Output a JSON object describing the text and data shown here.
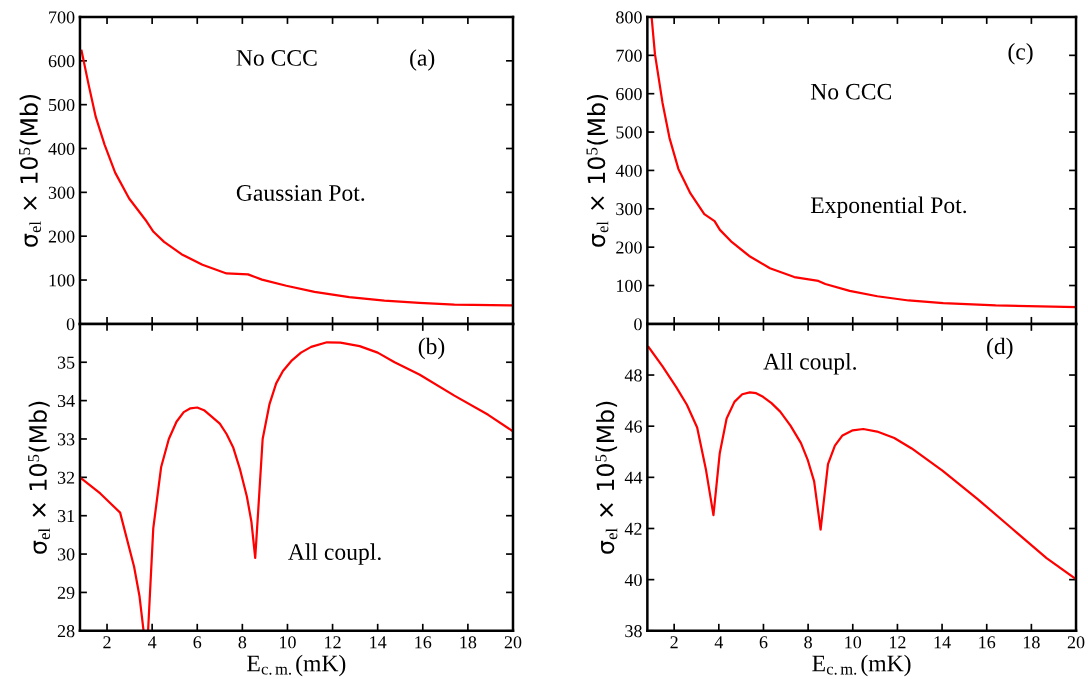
{
  "chart_data": [
    {
      "type": "line",
      "ylabel": "σ$_{el}$ × 10$^{5}$(Mb)",
      "annotations": [
        "No CCC",
        "(a)",
        "Gaussian Pot."
      ],
      "xlim": [
        0.8,
        20
      ],
      "xticks": [
        2,
        4,
        6,
        8,
        10,
        12,
        14,
        16,
        18,
        20
      ],
      "ylim": [
        0,
        700
      ],
      "yticks": [
        0,
        100,
        200,
        300,
        400,
        500,
        600,
        700
      ],
      "tick_labels": "y",
      "grid": false,
      "series": [
        {
          "color": "#ff0000",
          "x": [
            0.87,
            1.19,
            1.5,
            1.89,
            2.36,
            2.98,
            3.75,
            4.06,
            4.53,
            5.3,
            6.23,
            7.3,
            8.25,
            8.87,
            9.95,
            11.2,
            12.74,
            14.3,
            15.85,
            17.4,
            20
          ],
          "values": [
            623,
            544,
            472,
            409,
            345,
            286,
            234,
            210,
            187,
            159,
            135,
            115,
            113,
            101,
            87,
            73,
            61,
            53,
            48,
            44,
            42
          ]
        }
      ]
    },
    {
      "type": "line",
      "xlabel": "E$_{c.m.}$(mK)",
      "ylabel": "σ$_{el}$ × 10$^{5}$(Mb)",
      "annotations": [
        "(b)",
        "All coupl."
      ],
      "xlim": [
        0.8,
        20
      ],
      "xticks": [
        2,
        4,
        6,
        8,
        10,
        12,
        14,
        16,
        18,
        20
      ],
      "ylim": [
        28,
        36
      ],
      "yticks": [
        28,
        29,
        30,
        31,
        32,
        33,
        34,
        35
      ],
      "grid": false,
      "series": [
        {
          "color": "#ff0000",
          "x": [
            0.8,
            1.7,
            2.58,
            3.2,
            3.44,
            3.62,
            3.72,
            3.82,
            4.05,
            4.4,
            4.74,
            5.08,
            5.4,
            5.7,
            6.0,
            6.3,
            6.6,
            7.0,
            7.3,
            7.6,
            7.9,
            8.2,
            8.4,
            8.57,
            8.7,
            8.9,
            9.2,
            9.5,
            9.8,
            10.2,
            10.6,
            11.05,
            11.75,
            12.35,
            13.2,
            14.0,
            14.75,
            15.85,
            17.4,
            18.9,
            20
          ],
          "values": [
            32.0,
            31.58,
            31.08,
            29.67,
            28.9,
            28.0,
            null,
            28.0,
            30.67,
            32.27,
            33.0,
            33.45,
            33.7,
            33.8,
            33.82,
            33.75,
            33.6,
            33.4,
            33.13,
            32.77,
            32.2,
            31.5,
            30.85,
            29.9,
            31.1,
            33.0,
            33.9,
            34.45,
            34.77,
            35.05,
            35.25,
            35.4,
            35.52,
            35.51,
            35.42,
            35.25,
            35.0,
            34.68,
            34.13,
            33.63,
            33.2
          ]
        }
      ]
    },
    {
      "type": "line",
      "ylabel": "σ$_{el}$ × 10$^{5}$(Mb)",
      "annotations": [
        "(c)",
        "No CCC",
        "Exponential Pot."
      ],
      "xlim": [
        0.8,
        20
      ],
      "xticks": [
        2,
        4,
        6,
        8,
        10,
        12,
        14,
        16,
        18,
        20
      ],
      "ylim": [
        0,
        800
      ],
      "yticks": [
        0,
        100,
        200,
        300,
        400,
        500,
        600,
        700,
        800
      ],
      "tick_labels": "y",
      "grid": false,
      "series": [
        {
          "color": "#ff0000",
          "x": [
            0.99,
            1.14,
            1.48,
            1.79,
            2.19,
            2.73,
            3.35,
            3.81,
            4.05,
            4.59,
            5.36,
            6.29,
            7.38,
            8.46,
            8.77,
            9.86,
            11.1,
            12.5,
            14.05,
            16.4,
            20
          ],
          "values": [
            800,
            703,
            576,
            485,
            404,
            340,
            286,
            268,
            245,
            213,
            177,
            145,
            122,
            112,
            104,
            86,
            72,
            61,
            54,
            48,
            44
          ]
        }
      ]
    },
    {
      "type": "line",
      "xlabel": "E$_{c.m.}$(mK)",
      "ylabel": "σ$_{el}$ × 10$^{5}$(Mb)",
      "annotations": [
        "All coupl.",
        "(d)"
      ],
      "xlim": [
        0.8,
        20
      ],
      "xticks": [
        2,
        4,
        6,
        8,
        10,
        12,
        14,
        16,
        18,
        20
      ],
      "ylim": [
        38,
        50
      ],
      "yticks": [
        38,
        40,
        42,
        44,
        46,
        48
      ],
      "grid": false,
      "series": [
        {
          "color": "#ff0000",
          "x": [
            0.86,
            1.48,
            2.1,
            2.57,
            3.03,
            3.42,
            3.76,
            4.04,
            4.35,
            4.7,
            5.05,
            5.39,
            5.67,
            5.98,
            6.36,
            6.75,
            7.21,
            7.68,
            7.99,
            8.27,
            8.56,
            8.89,
            9.2,
            9.54,
            10.0,
            10.47,
            11.09,
            11.86,
            12.64,
            14.03,
            15.58,
            17.13,
            18.68,
            20
          ],
          "values": [
            49.09,
            48.34,
            47.52,
            46.84,
            45.95,
            44.32,
            42.52,
            44.93,
            46.3,
            46.95,
            47.25,
            47.32,
            47.29,
            47.15,
            46.9,
            46.57,
            46.02,
            45.34,
            44.66,
            43.84,
            41.96,
            44.52,
            45.24,
            45.64,
            45.84,
            45.89,
            45.79,
            45.54,
            45.13,
            44.25,
            43.16,
            42.0,
            40.84,
            40.02
          ]
        }
      ]
    }
  ]
}
